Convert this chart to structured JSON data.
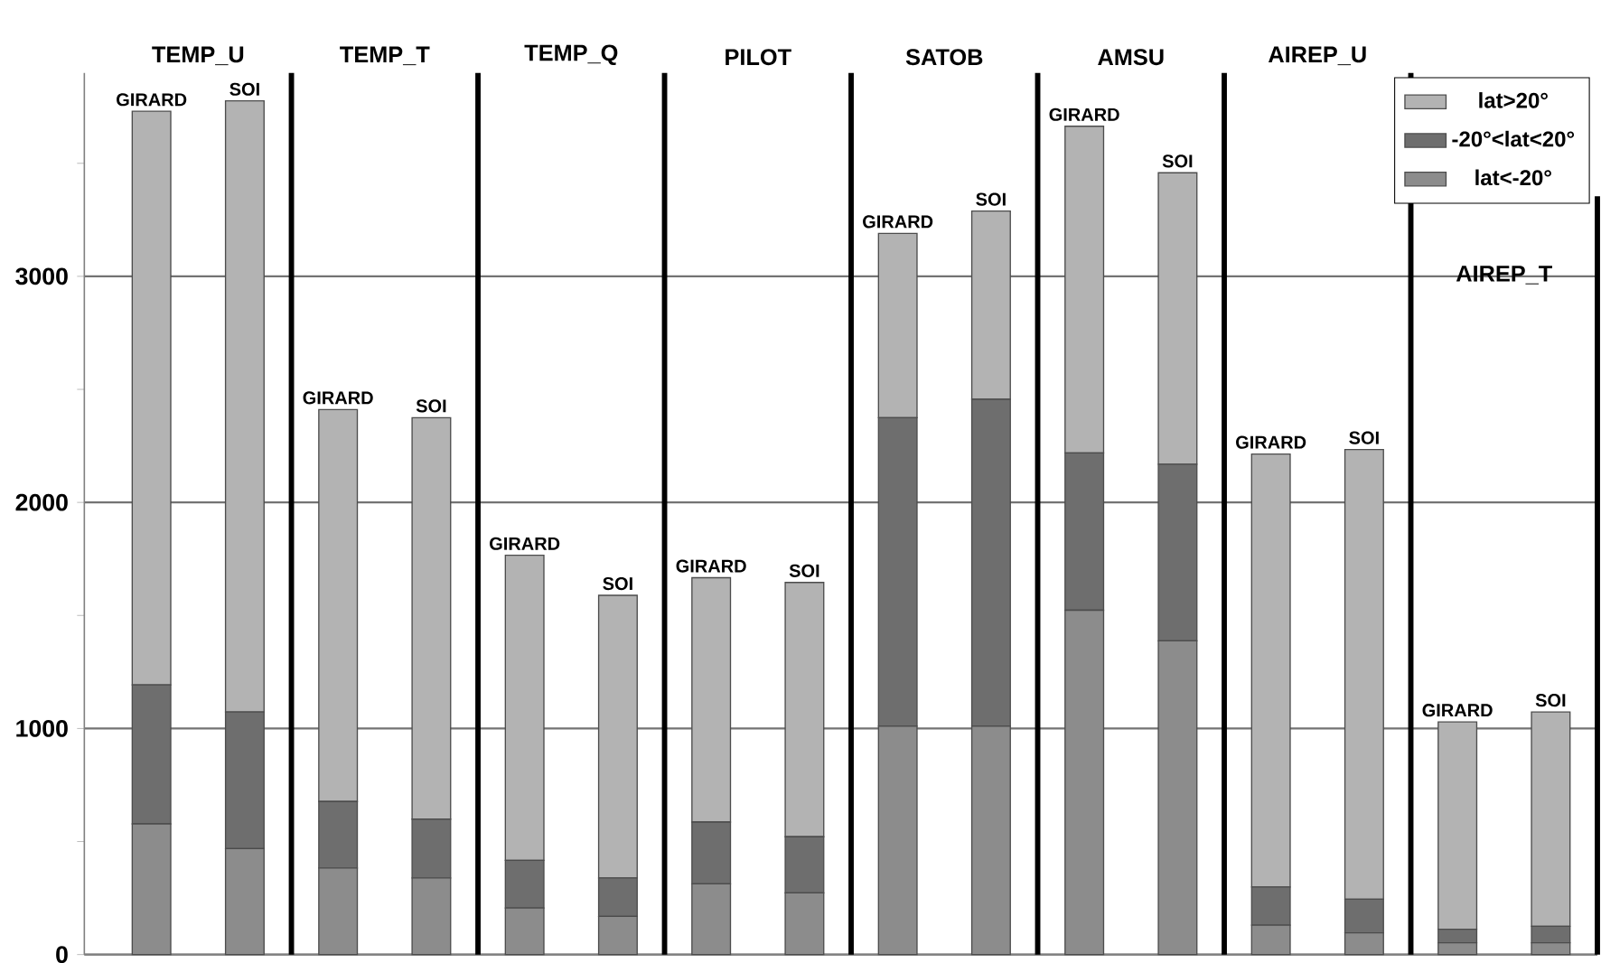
{
  "chart_data": {
    "type": "bar",
    "stacked": true,
    "categories": [
      "GIRARD",
      "SOI",
      "GIRARD",
      "SOI",
      "GIRARD",
      "SOI",
      "GIRARD",
      "SOI",
      "GIRARD",
      "SOI",
      "GIRARD",
      "SOI",
      "GIRARD",
      "SOI",
      "GIRARD",
      "SOI"
    ],
    "series": [
      {
        "name": "lat<-20°",
        "color": "#8c8c8c",
        "values": [
          578,
          469,
          383,
          339,
          206,
          169,
          313,
          273,
          1010,
          1010,
          1523,
          1388,
          130,
          96,
          52,
          52
        ]
      },
      {
        "name": "-20°<lat<20°",
        "color": "#6e6e6e",
        "values": [
          615,
          604,
          294,
          260,
          211,
          170,
          273,
          248,
          1365,
          1446,
          696,
          781,
          169,
          149,
          60,
          73
        ]
      },
      {
        "name": "lat>20°",
        "color": "#b3b3b3",
        "values": [
          2537,
          2703,
          1734,
          1776,
          1349,
          1250,
          1081,
          1125,
          815,
          833,
          1445,
          1289,
          1915,
          1989,
          917,
          948
        ]
      }
    ],
    "annotations": [
      "TEMP_U",
      "TEMP_T",
      "TEMP_Q",
      "PILOT",
      "SATOB",
      "AMSU",
      "AIREP_U",
      "AIREP_T"
    ],
    "ylim": [
      0,
      3900
    ],
    "yticks": [
      0,
      {
        "value": 500,
        "label": null
      },
      1000,
      {
        "value": 1500,
        "label": null
      },
      2000,
      {
        "value": 2500,
        "label": null
      },
      3000,
      {
        "value": 3500,
        "label": null
      }
    ],
    "grid": "y",
    "legend": "top right"
  }
}
